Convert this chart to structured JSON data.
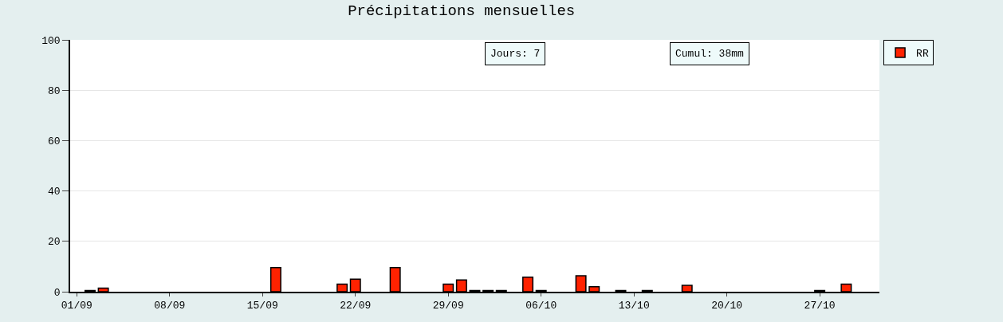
{
  "chart_data": {
    "type": "bar",
    "title": "Précipitations mensuelles",
    "categories": [
      "01/09",
      null,
      null,
      null,
      null,
      null,
      null,
      "08/09",
      null,
      null,
      null,
      null,
      null,
      null,
      "15/09",
      null,
      null,
      null,
      null,
      null,
      null,
      "22/09",
      null,
      null,
      null,
      null,
      null,
      null,
      "29/09",
      null,
      null,
      null,
      null,
      null,
      null,
      "06/10",
      null,
      null,
      null,
      null,
      null,
      null,
      "13/10",
      null,
      null,
      null,
      null,
      null,
      null,
      "20/10",
      null,
      null,
      null,
      null,
      null,
      null,
      "27/10",
      null,
      null,
      null,
      null
    ],
    "series": [
      {
        "name": "RR",
        "color": "#ff2200",
        "values": [
          null,
          0.5,
          1.4,
          null,
          null,
          null,
          null,
          null,
          null,
          null,
          null,
          null,
          null,
          null,
          null,
          9.6,
          null,
          null,
          null,
          null,
          3.0,
          5.0,
          null,
          null,
          9.6,
          null,
          null,
          null,
          3.0,
          4.7,
          0.5,
          0.5,
          0.5,
          null,
          5.8,
          0.5,
          null,
          null,
          6.3,
          2.0,
          null,
          0.5,
          null,
          0.5,
          null,
          null,
          2.5,
          null,
          null,
          null,
          null,
          null,
          null,
          null,
          null,
          null,
          0.5,
          null,
          3.0,
          null,
          null
        ]
      }
    ],
    "ylim": [
      0,
      100
    ],
    "yticks": [
      0,
      20,
      40,
      60,
      80,
      100
    ],
    "grid": "y",
    "legend": "top right",
    "annotations": [
      "Jours: 7",
      "Cumul: 38mm"
    ]
  }
}
